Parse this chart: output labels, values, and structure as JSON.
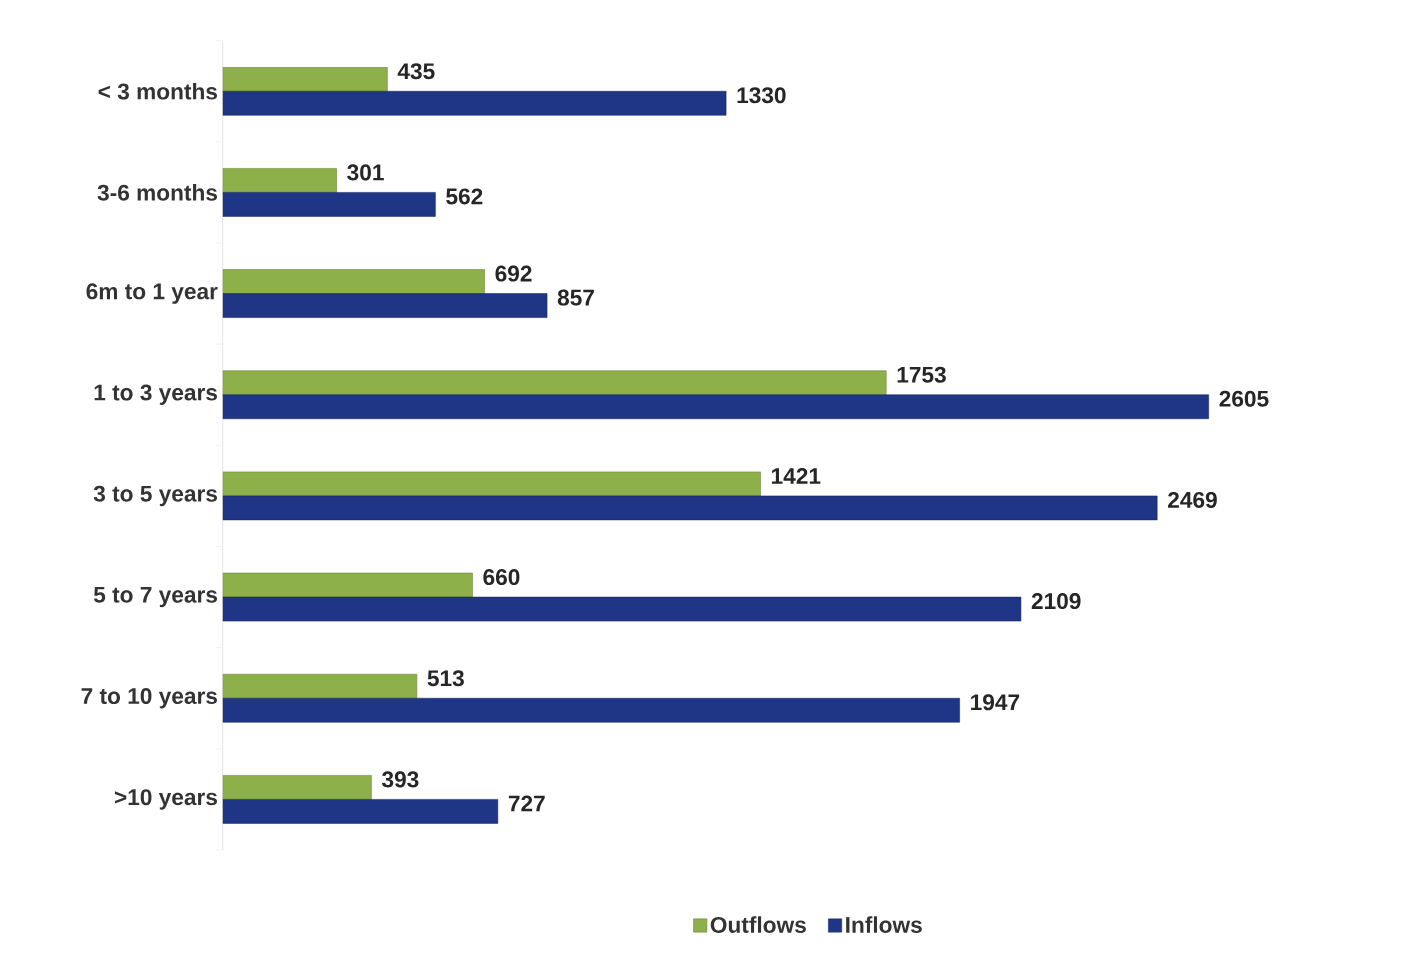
{
  "chart_data": {
    "type": "bar",
    "orientation": "horizontal",
    "categories": [
      "< 3 months",
      "3-6 months",
      "6m to 1 year",
      "1 to 3 years",
      "3 to 5 years",
      "5 to 7 years",
      "7 to 10 years",
      ">10 years"
    ],
    "series": [
      {
        "name": "Outflows",
        "color": "#8db04a",
        "values": [
          435,
          301,
          692,
          1753,
          1421,
          660,
          513,
          393
        ]
      },
      {
        "name": "Inflows",
        "color": "#1f3585",
        "values": [
          1330,
          562,
          857,
          2605,
          2469,
          2109,
          1947,
          727
        ]
      }
    ],
    "data_labels": true,
    "legend": "bottom"
  }
}
